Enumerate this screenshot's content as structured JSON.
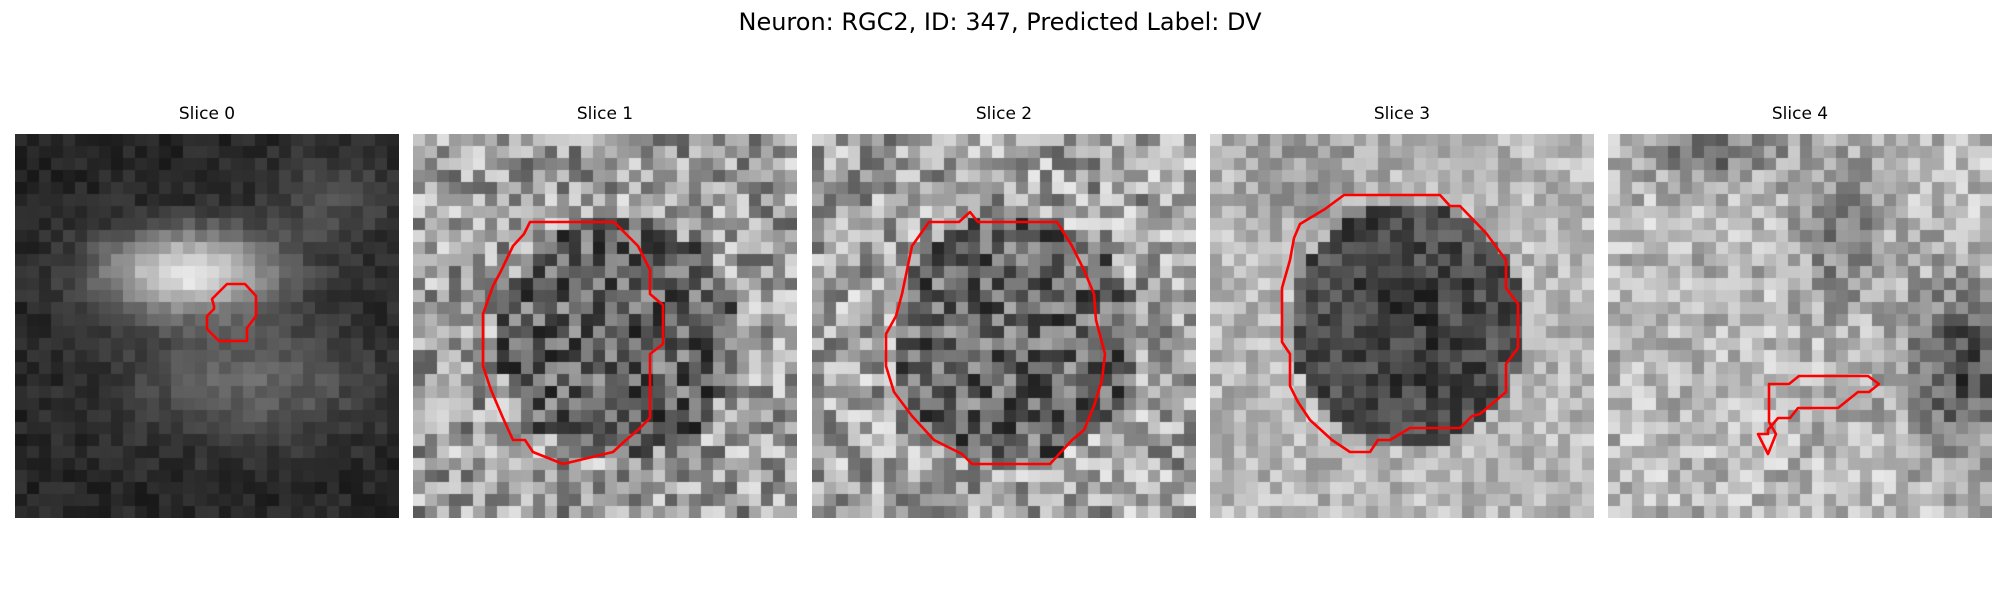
{
  "figure": {
    "title": "Neuron: RGC2, ID: 347, Predicted Label: DV"
  },
  "panels": [
    {
      "title": "Slice 0",
      "outline_color": "#ff0000"
    },
    {
      "title": "Slice 1",
      "outline_color": "#ff0000"
    },
    {
      "title": "Slice 2",
      "outline_color": "#ff0000"
    },
    {
      "title": "Slice 3",
      "outline_color": "#ff0000"
    },
    {
      "title": "Slice 4",
      "outline_color": "#ff0000"
    }
  ]
}
